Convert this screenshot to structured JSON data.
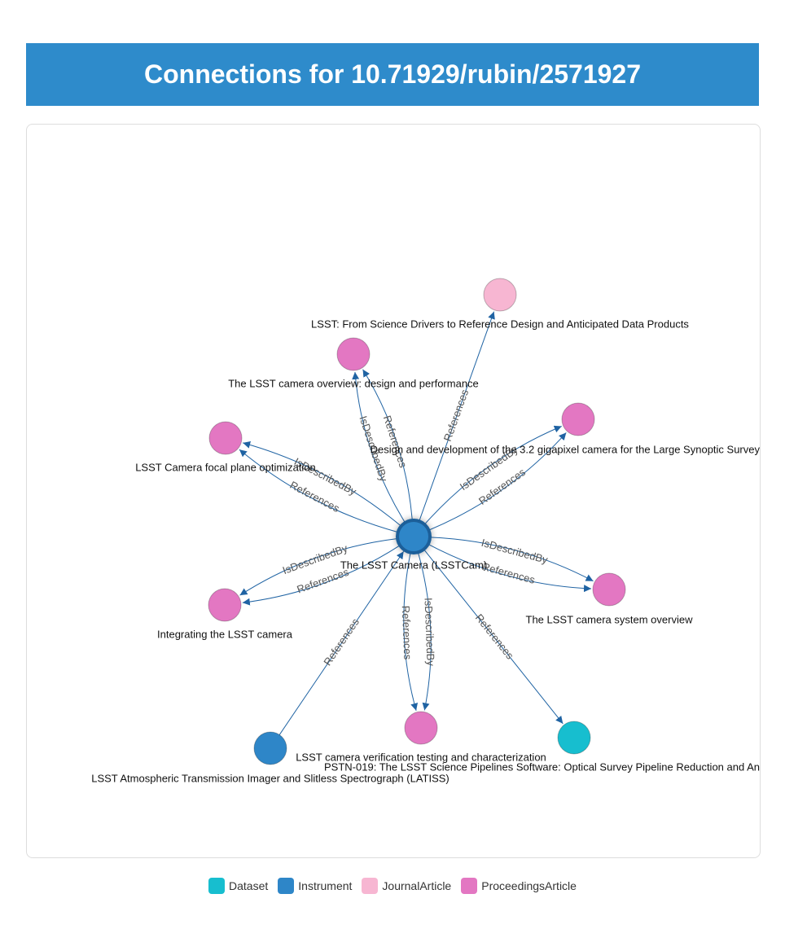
{
  "header": {
    "title": "Connections for 10.71929/rubin/2571927"
  },
  "legend": [
    {
      "name": "Dataset",
      "color": "#17becf"
    },
    {
      "name": "Instrument",
      "color": "#2e86c8"
    },
    {
      "name": "JournalArticle",
      "color": "#f7b6d2"
    },
    {
      "name": "ProceedingsArticle",
      "color": "#e377c2"
    }
  ],
  "nodes": [
    {
      "label": "The LSST Camera (LSSTCam)",
      "type": "Instrument"
    },
    {
      "label": "LSST: From Science Drivers to Reference Design and Anticipated Data Products",
      "type": "JournalArticle"
    },
    {
      "label": "The LSST camera overview: design and performance",
      "type": "ProceedingsArticle"
    },
    {
      "label": "Design and development of the 3.2 gigapixel camera for the Large Synoptic Survey",
      "type": "ProceedingsArticle"
    },
    {
      "label": "LSST Camera focal plane optimization",
      "type": "ProceedingsArticle"
    },
    {
      "label": "The LSST camera system overview",
      "type": "ProceedingsArticle"
    },
    {
      "label": "Integrating the LSST camera",
      "type": "ProceedingsArticle"
    },
    {
      "label": "LSST camera verification testing and characterization",
      "type": "ProceedingsArticle"
    },
    {
      "label": "PSTN-019: The LSST Science Pipelines Software: Optical Survey Pipeline Reduction and An",
      "type": "Dataset"
    },
    {
      "label": "LSST Atmospheric Transmission Imager and Slitless Spectrograph (LATISS)",
      "type": "Instrument"
    }
  ],
  "edges": [
    {
      "source": 0,
      "target": 1,
      "label": "References"
    },
    {
      "source": 0,
      "target": 2,
      "label": "References"
    },
    {
      "source": 0,
      "target": 2,
      "label": "IsDescribedBy"
    },
    {
      "source": 0,
      "target": 3,
      "label": "References"
    },
    {
      "source": 0,
      "target": 3,
      "label": "IsDescribedBy"
    },
    {
      "source": 0,
      "target": 4,
      "label": "IsDescribedBy"
    },
    {
      "source": 0,
      "target": 4,
      "label": "References"
    },
    {
      "source": 0,
      "target": 5,
      "label": "References"
    },
    {
      "source": 0,
      "target": 5,
      "label": "IsDescribedBy"
    },
    {
      "source": 0,
      "target": 6,
      "label": "IsDescribedBy"
    },
    {
      "source": 0,
      "target": 6,
      "label": "References"
    },
    {
      "source": 0,
      "target": 7,
      "label": "References"
    },
    {
      "source": 0,
      "target": 7,
      "label": "IsDescribedBy"
    },
    {
      "source": 0,
      "target": 8,
      "label": "References"
    },
    {
      "source": 9,
      "target": 0,
      "label": "References"
    }
  ]
}
